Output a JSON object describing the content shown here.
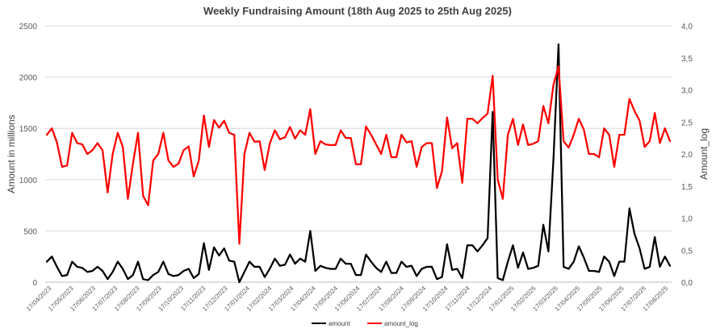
{
  "chart_data": {
    "type": "line",
    "title": "Weekly Fundraising Amount (18th Aug 2025 to 25th Aug 2025)",
    "ylabel": "Amount in millions",
    "y2label": "Amount_log",
    "ylim": [
      0,
      2500
    ],
    "y2lim": [
      0,
      4.0
    ],
    "yticks": [
      "0",
      "500",
      "1000",
      "1500",
      "2000",
      "2500"
    ],
    "y2ticks": [
      "0,0",
      "0,5",
      "1,0",
      "1,5",
      "2,0",
      "2,5",
      "3,0",
      "3,5",
      "4,0"
    ],
    "grid": true,
    "legend_position": "bottom",
    "x_tick_labels": [
      "17/04/2023",
      "17/05/2023",
      "17/06/2023",
      "17/07/2023",
      "17/08/2023",
      "17/09/2023",
      "17/10/2023",
      "17/11/2023",
      "17/12/2023",
      "17/01/2024",
      "17/02/2024",
      "17/03/2024",
      "17/04/2024",
      "17/05/2024",
      "17/06/2024",
      "17/07/2024",
      "17/08/2024",
      "17/09/2024",
      "17/10/2024",
      "17/11/2024",
      "17/12/2024",
      "17/01/2025",
      "17/02/2025",
      "17/03/2025",
      "17/04/2025",
      "17/05/2025",
      "17/06/2025",
      "17/07/2025",
      "17/08/2025"
    ],
    "series": [
      {
        "name": "amount",
        "axis": "left",
        "color": "#000000",
        "values": [
          200,
          250,
          150,
          60,
          70,
          200,
          150,
          140,
          100,
          110,
          150,
          110,
          30,
          100,
          200,
          130,
          30,
          70,
          200,
          30,
          20,
          70,
          100,
          200,
          80,
          60,
          70,
          110,
          130,
          40,
          80,
          380,
          120,
          340,
          260,
          330,
          210,
          200,
          0,
          100,
          200,
          150,
          150,
          50,
          130,
          230,
          160,
          170,
          270,
          180,
          230,
          200,
          500,
          110,
          160,
          140,
          130,
          130,
          230,
          180,
          180,
          70,
          70,
          270,
          200,
          140,
          100,
          200,
          90,
          90,
          200,
          150,
          160,
          60,
          130,
          150,
          150,
          30,
          50,
          370,
          120,
          130,
          40,
          360,
          360,
          300,
          360,
          430,
          1660,
          40,
          20,
          200,
          360,
          140,
          290,
          130,
          140,
          160,
          560,
          300,
          1200,
          2320,
          150,
          130,
          200,
          350,
          240,
          110,
          110,
          100,
          250,
          200,
          60,
          200,
          200,
          720,
          470,
          330,
          130,
          150,
          440,
          150,
          250,
          160
        ]
      },
      {
        "name": "amount_log",
        "axis": "right",
        "color": "#ff0000",
        "values": [
          2.3,
          2.4,
          2.18,
          1.8,
          1.82,
          2.33,
          2.17,
          2.15,
          2.0,
          2.06,
          2.17,
          2.06,
          1.4,
          2.0,
          2.33,
          2.11,
          1.3,
          1.85,
          2.33,
          1.35,
          1.2,
          1.9,
          2.0,
          2.33,
          1.9,
          1.8,
          1.85,
          2.06,
          2.12,
          1.65,
          1.9,
          2.6,
          2.11,
          2.53,
          2.41,
          2.52,
          2.33,
          2.3,
          0.6,
          2.0,
          2.33,
          2.19,
          2.2,
          1.75,
          2.16,
          2.37,
          2.23,
          2.26,
          2.42,
          2.24,
          2.37,
          2.3,
          2.7,
          2.0,
          2.2,
          2.15,
          2.14,
          2.14,
          2.37,
          2.25,
          2.25,
          1.84,
          1.84,
          2.43,
          2.3,
          2.15,
          2.0,
          2.3,
          1.95,
          1.95,
          2.3,
          2.18,
          2.2,
          1.8,
          2.11,
          2.17,
          2.17,
          1.47,
          1.73,
          2.57,
          2.09,
          2.17,
          1.55,
          2.55,
          2.55,
          2.48,
          2.56,
          2.63,
          3.22,
          1.6,
          1.3,
          2.3,
          2.55,
          2.14,
          2.46,
          2.14,
          2.16,
          2.2,
          2.75,
          2.48,
          3.08,
          3.37,
          2.2,
          2.1,
          2.3,
          2.55,
          2.38,
          2.0,
          2.0,
          1.95,
          2.4,
          2.3,
          1.8,
          2.3,
          2.3,
          2.86,
          2.67,
          2.52,
          2.11,
          2.2,
          2.64,
          2.17,
          2.4,
          2.2
        ]
      }
    ]
  }
}
